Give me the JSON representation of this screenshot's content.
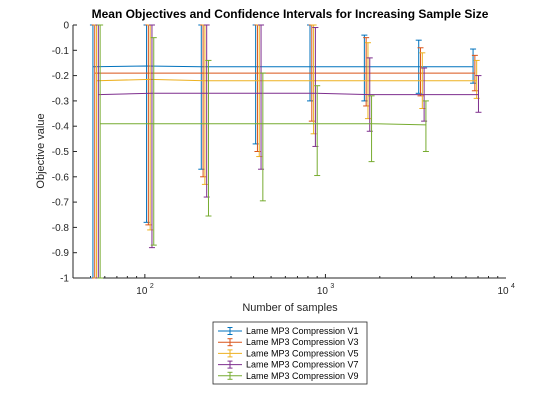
{
  "chart_data": {
    "type": "line",
    "title": "Mean Objectives and Confidence Intervals for Increasing Sample Size",
    "xlabel": "Number of samples",
    "ylabel": "Objective value",
    "xscale": "log",
    "xlim": [
      40,
      10000
    ],
    "ylim": [
      -1,
      0
    ],
    "x_ticks": [
      {
        "base": "10",
        "exp": "2",
        "value": 100
      },
      {
        "base": "10",
        "exp": "3",
        "value": 1000
      },
      {
        "base": "10",
        "exp": "4",
        "value": 10000
      }
    ],
    "y_ticks": [
      "0",
      "-0.1",
      "-0.2",
      "-0.3",
      "-0.4",
      "-0.5",
      "-0.6",
      "-0.7",
      "-0.8",
      "-0.9",
      "-1"
    ],
    "y_tick_values": [
      0,
      -0.1,
      -0.2,
      -0.3,
      -0.4,
      -0.5,
      -0.6,
      -0.7,
      -0.8,
      -0.9,
      -1
    ],
    "x": [
      54,
      107,
      215,
      430,
      860,
      1720,
      3440,
      6880
    ],
    "grid": false,
    "legend_position": "bottom-outside",
    "series": [
      {
        "name": "Lame MP3 Compression V1",
        "color": "#0072BD",
        "mean": [
          -0.165,
          -0.162,
          -0.165,
          -0.165,
          -0.165,
          -0.165,
          -0.165,
          -0.165
        ],
        "lower": [
          -1.0,
          -0.78,
          -0.57,
          -0.47,
          -0.3,
          -0.3,
          -0.27,
          -0.23
        ],
        "upper": [
          0.0,
          0.0,
          0.0,
          0.0,
          0.0,
          -0.04,
          -0.06,
          -0.095
        ]
      },
      {
        "name": "Lame MP3 Compression V3",
        "color": "#D95319",
        "mean": [
          -0.19,
          -0.19,
          -0.19,
          -0.19,
          -0.19,
          -0.19,
          -0.19,
          -0.19
        ],
        "lower": [
          -1.0,
          -0.79,
          -0.6,
          -0.5,
          -0.38,
          -0.32,
          -0.28,
          -0.26
        ],
        "upper": [
          0.0,
          0.0,
          0.0,
          0.0,
          0.0,
          -0.05,
          -0.09,
          -0.12
        ]
      },
      {
        "name": "Lame MP3 Compression V5",
        "color": "#EDB120",
        "mean": [
          -0.22,
          -0.215,
          -0.22,
          -0.22,
          -0.22,
          -0.22,
          -0.22,
          -0.22
        ],
        "lower": [
          -1.0,
          -0.81,
          -0.63,
          -0.52,
          -0.43,
          -0.37,
          -0.33,
          -0.29
        ],
        "upper": [
          0.0,
          0.0,
          0.0,
          0.0,
          0.0,
          -0.07,
          -0.11,
          -0.14
        ]
      },
      {
        "name": "Lame MP3 Compression V7",
        "color": "#7E2F8E",
        "mean": [
          -0.275,
          -0.27,
          -0.27,
          -0.27,
          -0.27,
          -0.275,
          -0.275,
          -0.275
        ],
        "lower": [
          -1.0,
          -0.88,
          -0.68,
          -0.57,
          -0.48,
          -0.42,
          -0.38,
          -0.345
        ],
        "upper": [
          0.0,
          0.0,
          0.0,
          0.0,
          -0.01,
          -0.13,
          -0.17,
          -0.2
        ]
      },
      {
        "name": "Lame MP3 Compression V9",
        "color": "#77AC30",
        "mean": [
          -0.39,
          -0.39,
          -0.39,
          -0.39,
          -0.39,
          -0.39,
          -0.395
        ],
        "lower": [
          -1.0,
          -0.87,
          -0.755,
          -0.695,
          -0.595,
          -0.54,
          -0.5
        ],
        "upper": [
          0.0,
          -0.05,
          -0.14,
          -0.19,
          -0.24,
          -0.28,
          -0.3
        ]
      }
    ]
  }
}
